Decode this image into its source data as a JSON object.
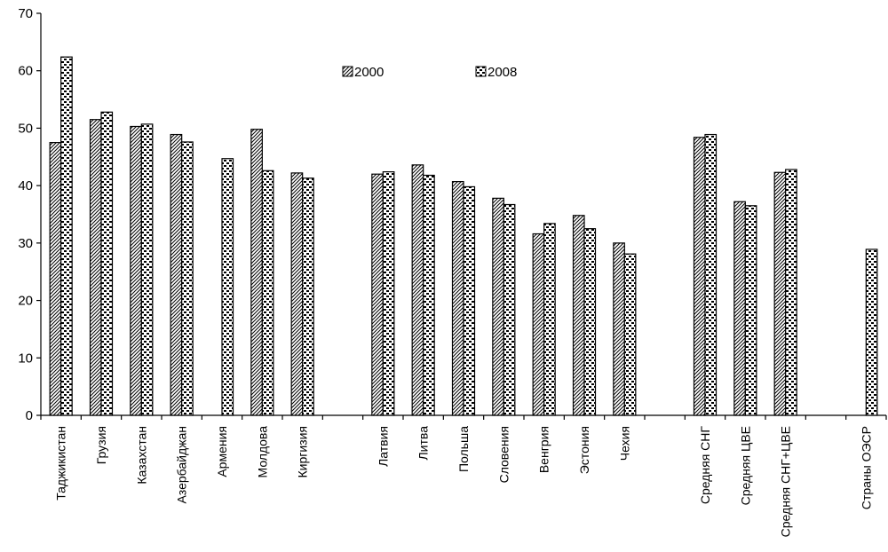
{
  "chart_data": {
    "type": "bar",
    "categories": [
      "Таджикистан",
      "Грузия",
      "Казахстан",
      "Азербайджан",
      "Армения",
      "Молдова",
      "Киргизия",
      "",
      "Латвия",
      "Литва",
      "Польша",
      "Словения",
      "Венгрия",
      "Эстония",
      "Чехия",
      "",
      "Средняя СНГ",
      "Средняя ЦВЕ",
      "Средняя СНГ+ЦВЕ",
      "",
      "Страны ОЭСР"
    ],
    "series": [
      {
        "name": "2000",
        "values": [
          47.5,
          51.5,
          50.3,
          48.9,
          null,
          49.8,
          42.2,
          null,
          42.0,
          43.6,
          40.7,
          37.8,
          31.6,
          34.8,
          30.0,
          null,
          48.4,
          37.2,
          42.3,
          null,
          null
        ]
      },
      {
        "name": "2008",
        "values": [
          62.4,
          52.8,
          50.7,
          47.6,
          44.7,
          42.6,
          41.3,
          null,
          42.4,
          41.8,
          39.8,
          36.7,
          33.4,
          32.5,
          28.1,
          null,
          48.9,
          36.5,
          42.8,
          null,
          28.9
        ]
      }
    ],
    "yticks": [
      "0",
      "10",
      "20",
      "30",
      "40",
      "50",
      "60",
      "70"
    ],
    "ylim": [
      0,
      70
    ],
    "legend_position": "top-center",
    "xlabel": "",
    "ylabel": "",
    "title": ""
  }
}
